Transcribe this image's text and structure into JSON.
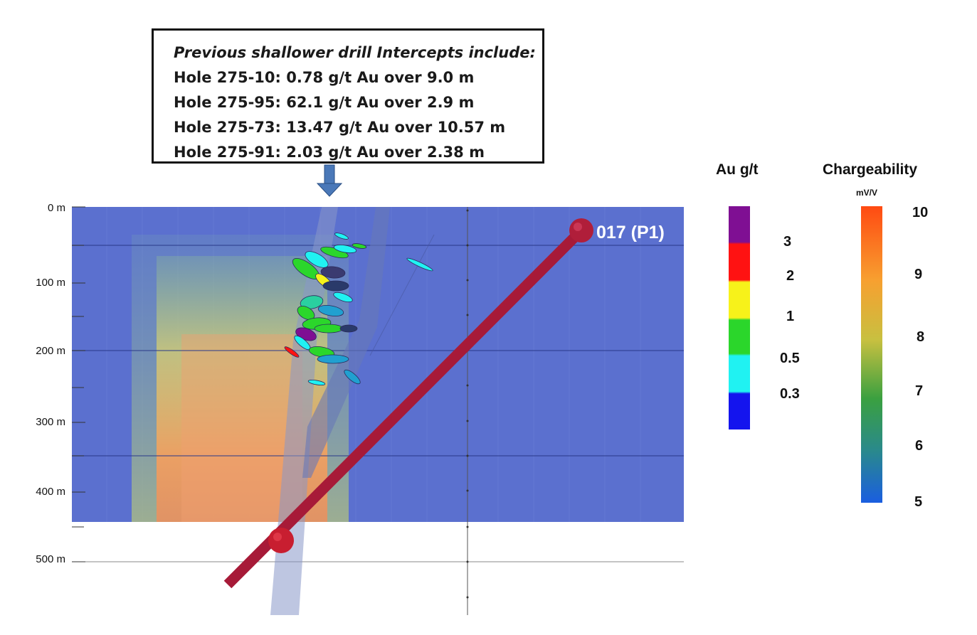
{
  "callout": {
    "heading": "Previous shallower drill Intercepts include:",
    "lines": [
      "Hole 275-10: 0.78 g/t Au over 9.0 m",
      "Hole 275-95: 62.1 g/t Au over 2.9 m",
      "Hole 275-73: 13.47 g/t Au over 10.57 m",
      "Hole 275-91: 2.03 g/t Au over 2.38 m"
    ]
  },
  "depth_axis": [
    "0 m",
    "100 m",
    "200 m",
    "300 m",
    "400 m",
    "500 m"
  ],
  "hole": {
    "label": "017 (P1)",
    "color": "#b01e3a"
  },
  "section": {
    "background_color": "#5b70cf"
  },
  "au_legend": {
    "title": "Au g/t",
    "labels": [
      "3",
      "2",
      "1",
      "0.5",
      "0.3"
    ],
    "colors": [
      "#7f0f93",
      "#ff1212",
      "#f7f21a",
      "#2bd62b",
      "#20f2f2",
      "#1414ee"
    ]
  },
  "chargeability_legend": {
    "title": "Chargeability",
    "unit": "mV/V",
    "labels": [
      "10",
      "9",
      "8",
      "7",
      "6",
      "5"
    ],
    "colors": [
      "#ff4a12",
      "#f7a030",
      "#c8c040",
      "#3aa040",
      "#2a8a8a",
      "#1a5ee0"
    ]
  }
}
